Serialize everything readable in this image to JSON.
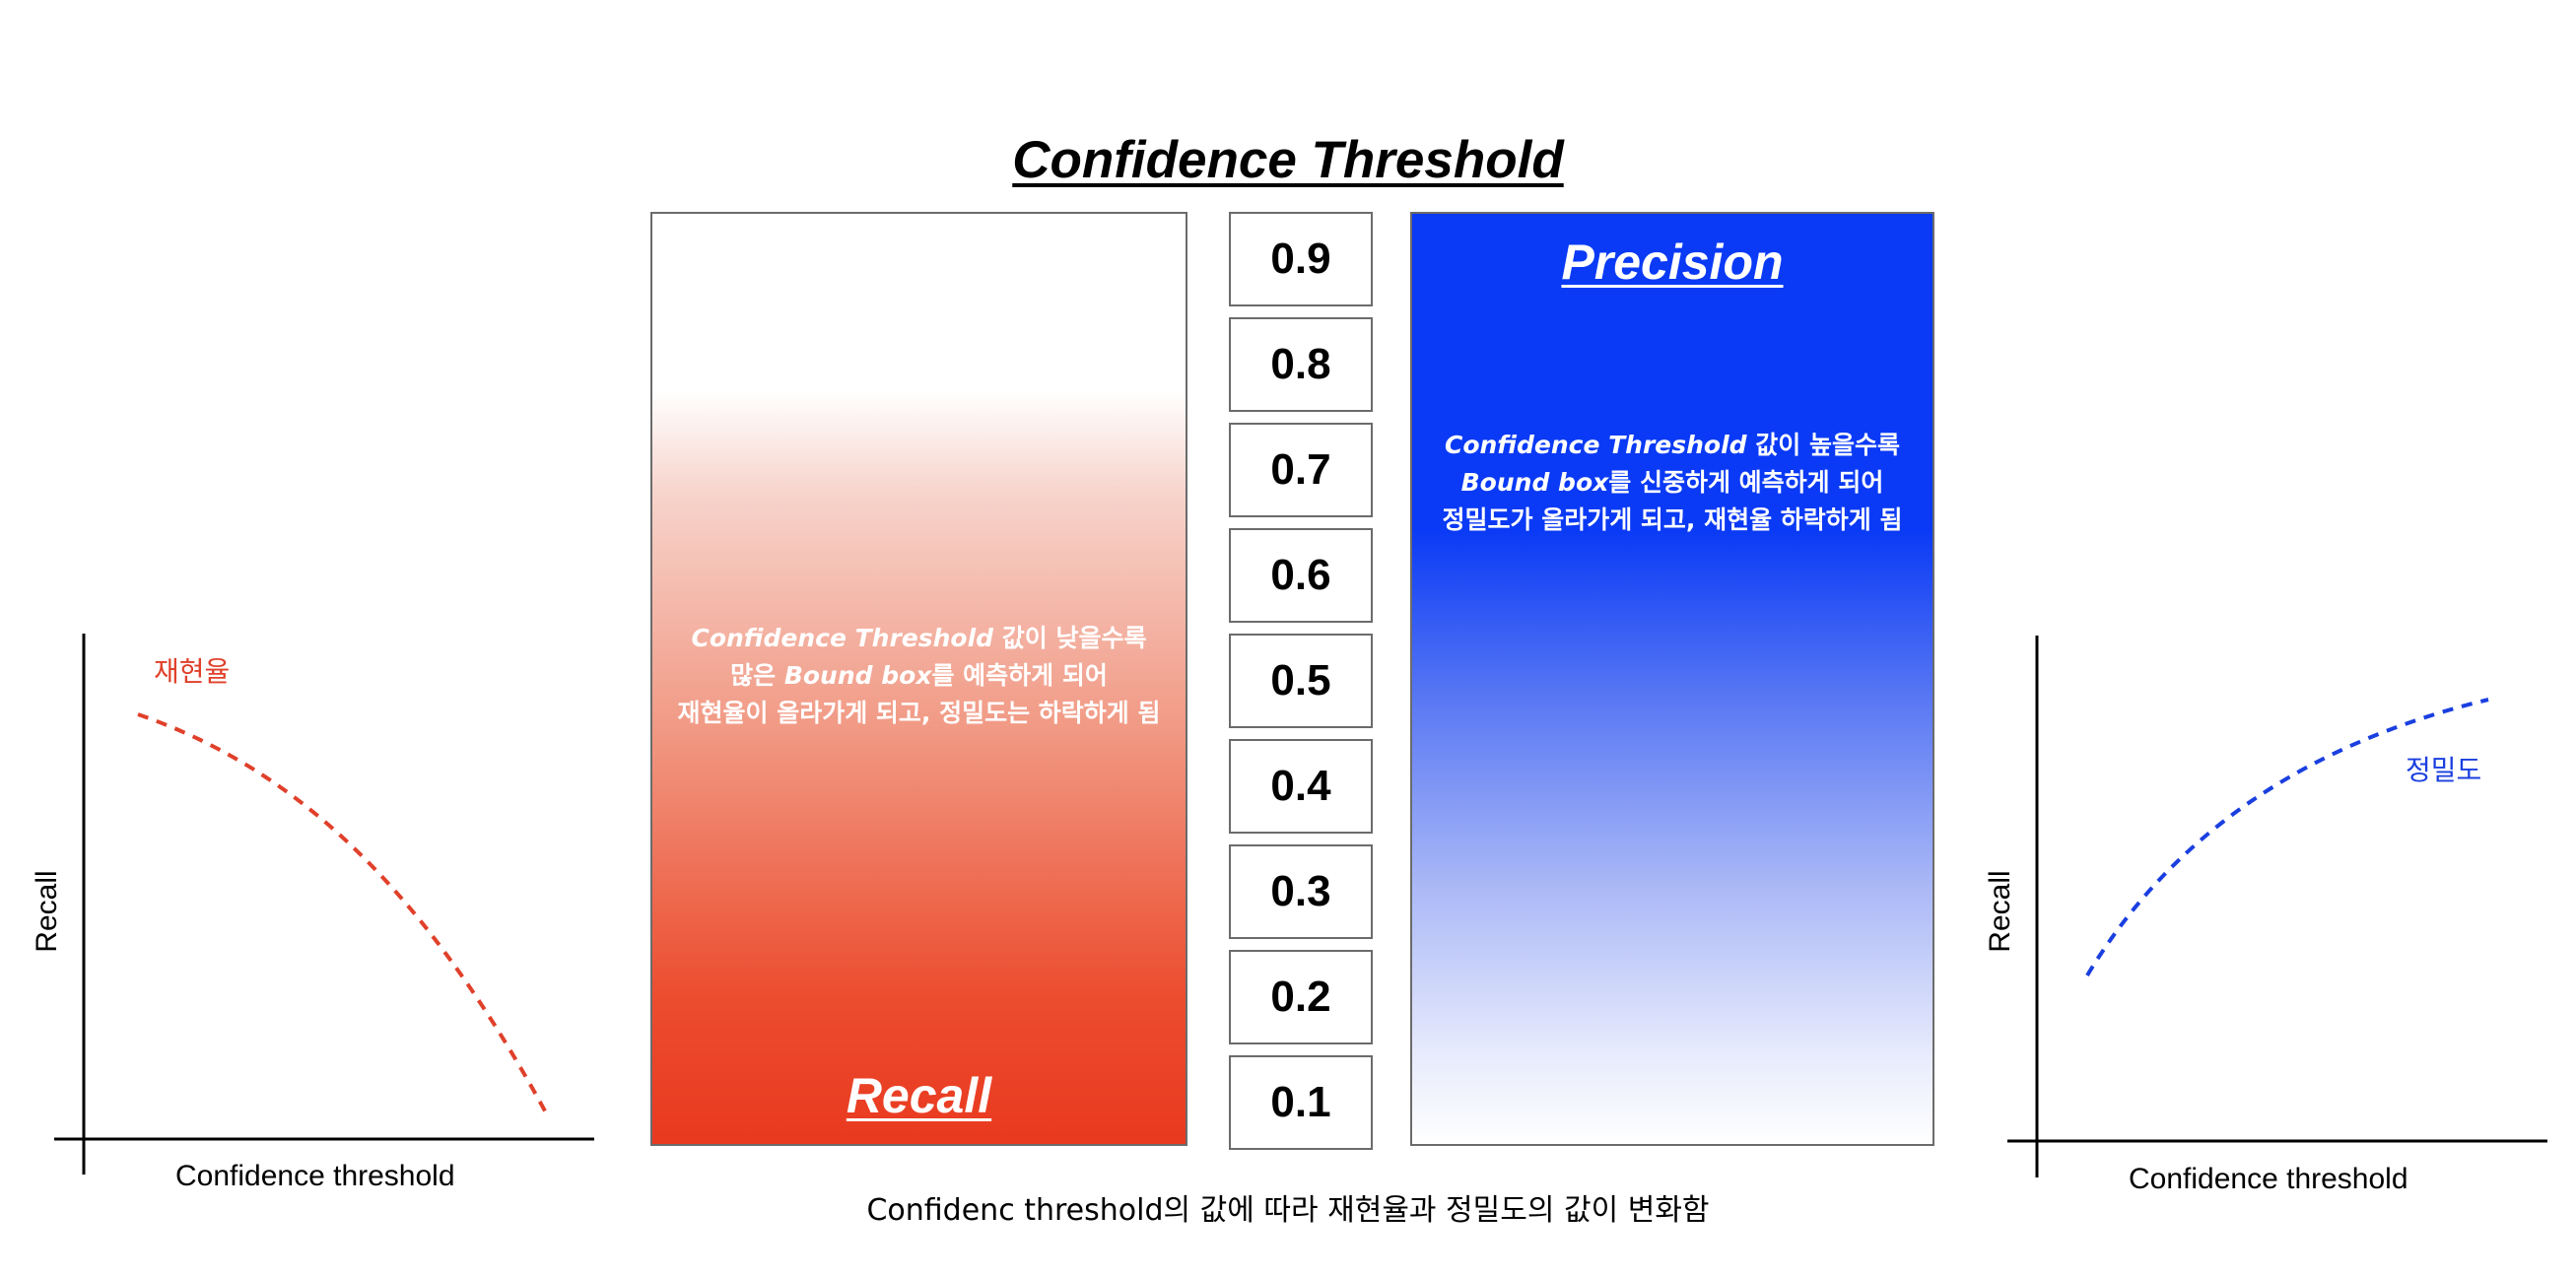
{
  "title": "Confidence Threshold",
  "recall_panel": {
    "heading": "Recall",
    "desc_lines": [
      {
        "term": "Confidence Threshold",
        "rest": " 값이 낮을수록"
      },
      {
        "pre": "많은 ",
        "term": "Bound box",
        "rest": "를 예측하게 되어"
      },
      {
        "text": "재현율이 올라가게 되고, 정밀도는 하락하게 됨"
      }
    ],
    "color": "#e9391f"
  },
  "precision_panel": {
    "heading": "Precision",
    "desc_lines": [
      {
        "term": "Confidence Threshold",
        "rest": " 값이 높을수록"
      },
      {
        "term": "Bound box",
        "rest": "를 신중하게 예측하게 되어"
      },
      {
        "text": "정밀도가 올라가게 되고, 재현율 하락하게 됨"
      }
    ],
    "color": "#0a3af5"
  },
  "threshold_scale": [
    "0.9",
    "0.8",
    "0.7",
    "0.6",
    "0.5",
    "0.4",
    "0.3",
    "0.2",
    "0.1"
  ],
  "left_graph": {
    "ylabel": "Recall",
    "xlabel": "Confidence threshold",
    "curve_label": "재현율",
    "curve_color": "#e0402a"
  },
  "right_graph": {
    "ylabel": "Recall",
    "xlabel": "Confidence threshold",
    "curve_label": "정밀도",
    "curve_color": "#1a3fe0"
  },
  "caption": "Confidenc threshold의 값에 따라 재현율과 정밀도의 값이 변화함"
}
